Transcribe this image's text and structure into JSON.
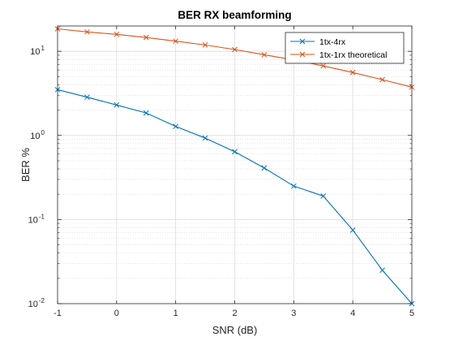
{
  "chart_data": {
    "type": "line",
    "title": "BER RX beamforming",
    "xlabel": "SNR (dB)",
    "ylabel": "BER %",
    "yscale": "log",
    "xlim": [
      -1,
      5
    ],
    "ylim": [
      0.01,
      20
    ],
    "x_ticks": [
      "-1",
      "0",
      "1",
      "2",
      "3",
      "4",
      "5"
    ],
    "y_ticks": [
      {
        "value": 0.01,
        "base": "10",
        "exp": "-2"
      },
      {
        "value": 0.1,
        "base": "10",
        "exp": "-1"
      },
      {
        "value": 1,
        "base": "10",
        "exp": "0"
      },
      {
        "value": 10,
        "base": "10",
        "exp": "1"
      }
    ],
    "grid": true,
    "minor_grid": true,
    "legend_position": "top-right",
    "x": [
      -1,
      -0.5,
      0,
      0.5,
      1,
      1.5,
      2,
      2.5,
      3,
      3.5,
      4,
      4.5,
      5
    ],
    "series": [
      {
        "name": "1tx-4rx",
        "color": "#0072BD",
        "marker": "x",
        "values": [
          3.5,
          2.85,
          2.3,
          1.85,
          1.28,
          0.93,
          0.64,
          0.41,
          0.25,
          0.19,
          0.075,
          0.025,
          0.01
        ]
      },
      {
        "name": "1tx-1rx theoretical",
        "color": "#D95319",
        "marker": "x",
        "values": [
          18.5,
          17.0,
          15.9,
          14.6,
          13.2,
          11.9,
          10.5,
          9.1,
          7.9,
          6.7,
          5.6,
          4.6,
          3.75
        ]
      }
    ]
  }
}
